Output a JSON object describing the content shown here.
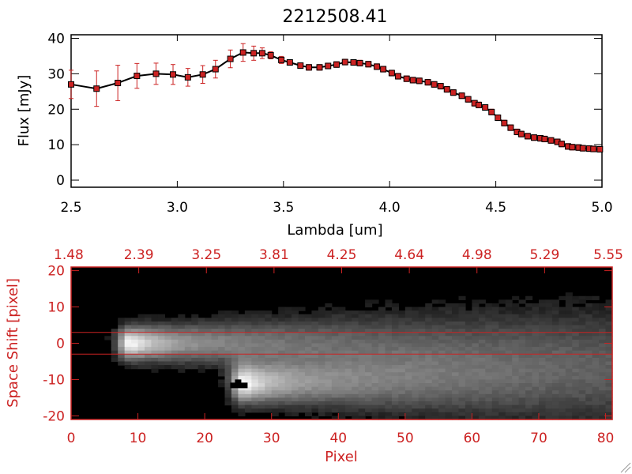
{
  "chart_data": [
    {
      "type": "line",
      "title": "2212508.41",
      "xlabel": "Lambda [um]",
      "ylabel": "Flux [mJy]",
      "xlim": [
        2.5,
        5.0
      ],
      "ylim": [
        -2,
        41
      ],
      "xticks": [
        "2.5",
        "3.0",
        "3.5",
        "4.0",
        "4.5",
        "5.0"
      ],
      "yticks": [
        "0",
        "10",
        "20",
        "30",
        "40"
      ],
      "grid": false,
      "series": [
        {
          "color": "#000000",
          "marker_color": "#cc2222",
          "errorbar_color": "#cc2222",
          "x": [
            2.5,
            2.62,
            2.72,
            2.81,
            2.9,
            2.98,
            3.05,
            3.12,
            3.18,
            3.25,
            3.31,
            3.36,
            3.4,
            3.44,
            3.49,
            3.53,
            3.58,
            3.62,
            3.67,
            3.71,
            3.75,
            3.79,
            3.83,
            3.86,
            3.9,
            3.94,
            3.97,
            4.01,
            4.04,
            4.08,
            4.11,
            4.14,
            4.18,
            4.21,
            4.24,
            4.27,
            4.3,
            4.34,
            4.37,
            4.4,
            4.42,
            4.45,
            4.48,
            4.51,
            4.54,
            4.57,
            4.6,
            4.62,
            4.65,
            4.68,
            4.71,
            4.73,
            4.76,
            4.79,
            4.81,
            4.84,
            4.86,
            4.89,
            4.91,
            4.94,
            4.96,
            4.99
          ],
          "y": [
            27.0,
            25.8,
            27.4,
            29.4,
            30.0,
            29.8,
            29.0,
            29.8,
            31.3,
            34.2,
            36.0,
            35.8,
            35.8,
            35.2,
            33.9,
            33.2,
            32.3,
            31.8,
            31.8,
            32.2,
            32.6,
            33.3,
            33.2,
            33.0,
            32.7,
            32.0,
            31.3,
            30.2,
            29.3,
            28.6,
            28.2,
            28.0,
            27.6,
            27.0,
            26.5,
            25.6,
            24.7,
            23.8,
            22.8,
            21.7,
            21.2,
            20.5,
            19.2,
            17.6,
            16.1,
            14.8,
            13.6,
            13.0,
            12.4,
            12.0,
            11.8,
            11.6,
            11.2,
            10.8,
            10.2,
            9.5,
            9.3,
            9.2,
            9.0,
            8.9,
            8.8,
            8.7
          ],
          "yerr": [
            4.0,
            5.0,
            5.0,
            3.5,
            3.0,
            2.8,
            2.5,
            2.5,
            2.5,
            2.5,
            2.5,
            2.0,
            1.5,
            1.0,
            1.0,
            0.8,
            0.8,
            0.8,
            0.8,
            0.8,
            0.8,
            0.8,
            0.8,
            0.8,
            0.8,
            0.8,
            0.8,
            0.8,
            0.8,
            0.8,
            0.8,
            0.8,
            0.8,
            0.8,
            0.8,
            0.8,
            0.8,
            0.8,
            0.8,
            0.8,
            0.8,
            0.8,
            0.8,
            0.8,
            0.8,
            0.8,
            0.8,
            0.8,
            0.8,
            0.8,
            0.8,
            0.8,
            0.8,
            0.8,
            0.8,
            0.8,
            0.8,
            0.8,
            0.8,
            0.8,
            0.8,
            0.8
          ]
        }
      ]
    },
    {
      "type": "heatmap",
      "xlabel": "Pixel",
      "ylabel": "Space Shift [pixel]",
      "xlim": [
        0,
        81
      ],
      "ylim": [
        -21,
        21
      ],
      "xticks": [
        "0",
        "10",
        "20",
        "30",
        "40",
        "50",
        "60",
        "70",
        "80"
      ],
      "yticks": [
        "-20",
        "-10",
        "0",
        "10",
        "20"
      ],
      "top_ticks": [
        "1.48",
        "2.39",
        "3.25",
        "3.81",
        "4.25",
        "4.64",
        "4.98",
        "5.29",
        "5.55"
      ],
      "colormap": "grayscale",
      "axis_color": "#cc2222",
      "hlines": [
        3,
        -3
      ],
      "hline_color": "#cc2222",
      "sources": [
        {
          "x0": 9,
          "y": 0,
          "length": 55,
          "width": 3.0,
          "peak": 1.0
        },
        {
          "x0": 26,
          "y": -11,
          "length": 55,
          "width": 3.5,
          "peak": 1.0
        }
      ],
      "marker": {
        "x": 25,
        "y": -11.5,
        "color": "#000000"
      }
    }
  ]
}
